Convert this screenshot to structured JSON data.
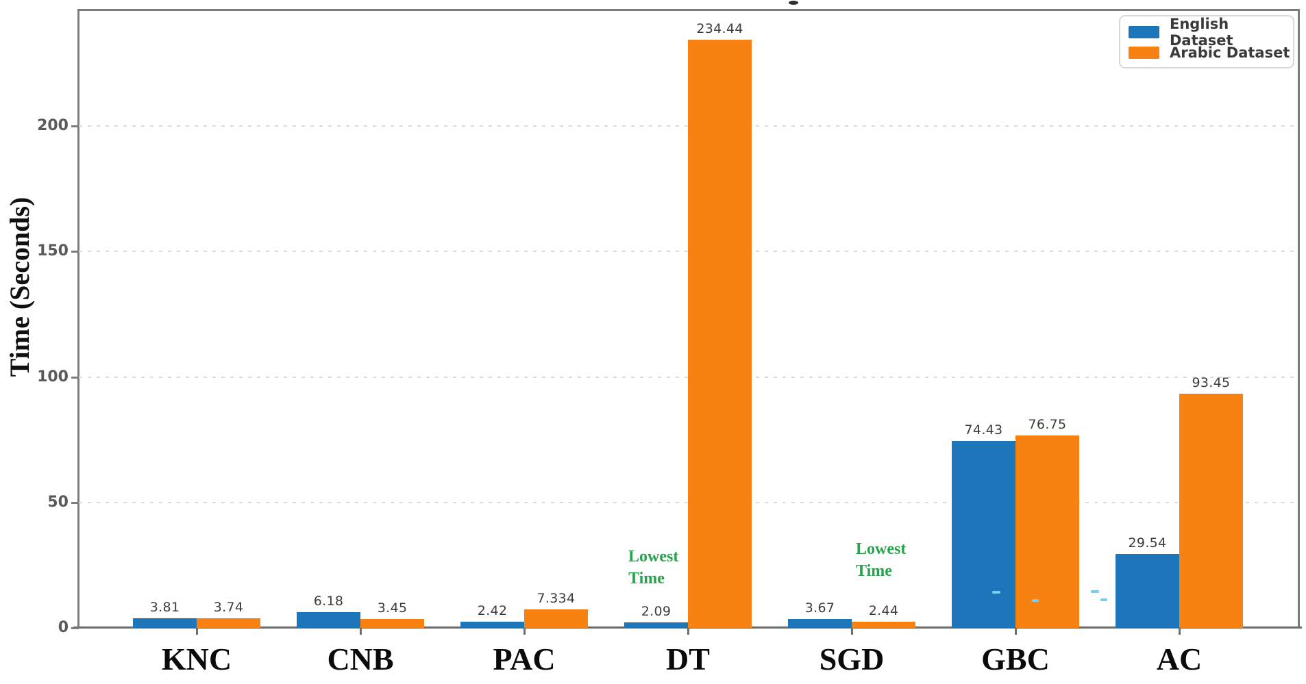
{
  "figure": {
    "y_axis_title": "Time (Seconds)",
    "legend": [
      {
        "label": "English Dataset",
        "color": "#1d76ba"
      },
      {
        "label": "Arabic Dataset",
        "color": "#f78212"
      }
    ],
    "annotations": [
      {
        "lines": [
          "Lowest",
          "Time"
        ],
        "color": "#28a24b",
        "near": "DT English bar"
      },
      {
        "lines": [
          "Lowest",
          "Time"
        ],
        "color": "#28a24b",
        "near": "SGD Arabic bar"
      }
    ]
  },
  "chart_data": {
    "type": "bar",
    "title": "",
    "xlabel": "",
    "ylabel": "Time (Seconds)",
    "categories": [
      "KNC",
      "CNB",
      "PAC",
      "DT",
      "SGD",
      "GBC",
      "AC"
    ],
    "series": [
      {
        "name": "English Dataset",
        "color": "#1d76ba",
        "values": [
          3.81,
          6.18,
          2.42,
          2.09,
          3.67,
          74.43,
          29.54
        ],
        "labels": [
          "3.81",
          "6.18",
          "2.42",
          "2.09",
          "3.67",
          "74.43",
          "29.54"
        ]
      },
      {
        "name": "Arabic Dataset",
        "color": "#f78212",
        "values": [
          3.74,
          3.45,
          7.334,
          234.44,
          2.44,
          76.75,
          93.45
        ],
        "labels": [
          "3.74",
          "3.45",
          "7.334",
          "234.44",
          "2.44",
          "76.75",
          "93.45"
        ]
      }
    ],
    "y_ticks": [
      0,
      50,
      100,
      150,
      200
    ],
    "ylim": [
      0,
      246
    ],
    "grid": "horizontal dotted",
    "legend_position": "upper right",
    "annotations": [
      {
        "text": "Lowest Time",
        "target": "DT English bar (2.09)"
      },
      {
        "text": "Lowest Time",
        "target": "SGD Arabic bar (2.44)"
      }
    ]
  }
}
